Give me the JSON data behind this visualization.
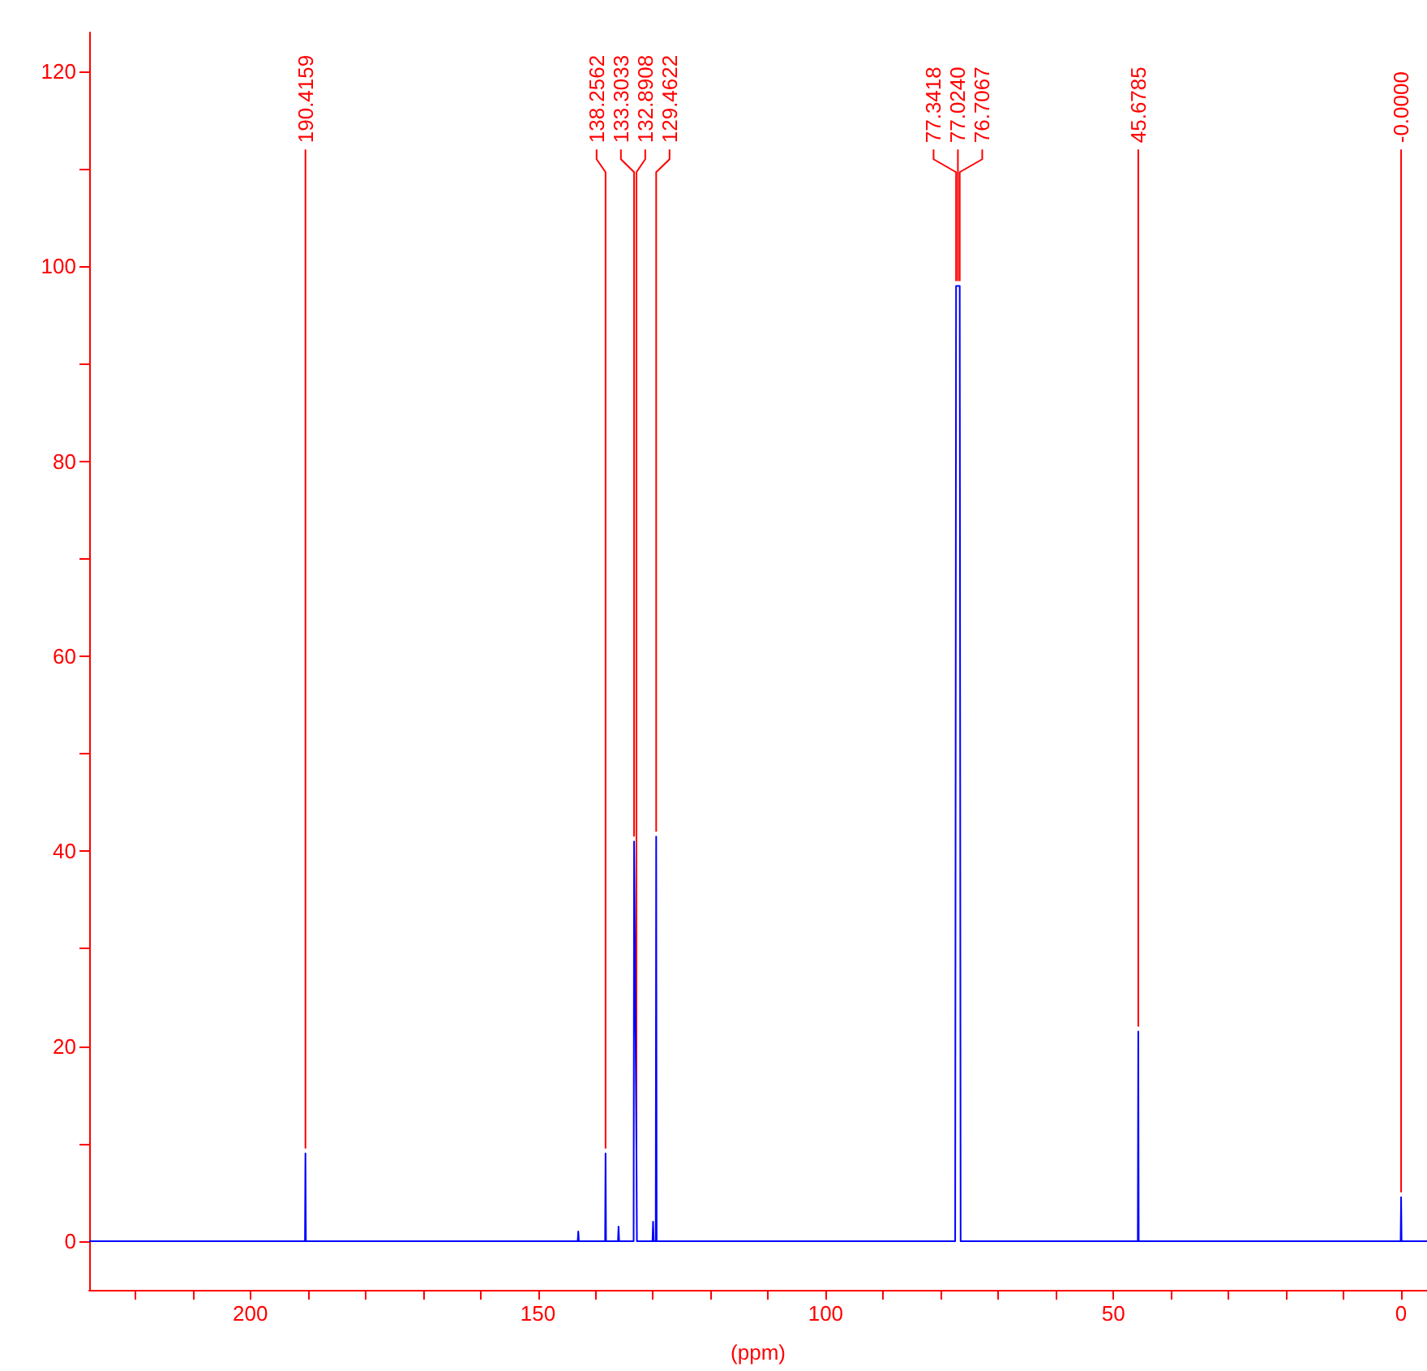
{
  "chart_data": {
    "type": "line",
    "xlabel": "(ppm)",
    "xlim": [
      228,
      -4.5
    ],
    "ylim": [
      -5,
      124
    ],
    "xticks": [
      {
        "value": 220,
        "label": null
      },
      {
        "value": 210,
        "label": null
      },
      200,
      {
        "value": 190,
        "label": null
      },
      {
        "value": 180,
        "label": null
      },
      {
        "value": 170,
        "label": null
      },
      {
        "value": 160,
        "label": null
      },
      150,
      {
        "value": 140,
        "label": null
      },
      {
        "value": 130,
        "label": null
      },
      {
        "value": 120,
        "label": null
      },
      {
        "value": 110,
        "label": null
      },
      100,
      {
        "value": 90,
        "label": null
      },
      {
        "value": 80,
        "label": null
      },
      {
        "value": 70,
        "label": null
      },
      {
        "value": 60,
        "label": null
      },
      50,
      {
        "value": 40,
        "label": null
      },
      {
        "value": 30,
        "label": null
      },
      {
        "value": 20,
        "label": null
      },
      {
        "value": 10,
        "label": null
      },
      0
    ],
    "yticks": [
      0,
      {
        "value": 10,
        "label": null
      },
      20,
      {
        "value": 30,
        "label": null
      },
      40,
      {
        "value": 50,
        "label": null
      },
      60,
      {
        "value": 70,
        "label": null
      },
      80,
      {
        "value": 90,
        "label": null
      },
      100,
      {
        "value": 110,
        "label": null
      },
      120
    ],
    "grid": false,
    "marker": "none",
    "line_style": "solid",
    "series": [
      {
        "color": "#0000ff",
        "x": [
          228,
          190.5,
          190.42,
          190.34,
          143.1,
          143.0,
          142.9,
          138.34,
          138.26,
          138.18,
          136.1,
          136.0,
          135.9,
          133.38,
          133.3,
          132.89,
          132.81,
          130.1,
          130.0,
          129.9,
          129.54,
          129.46,
          129.38,
          77.5,
          77.34,
          77.02,
          76.71,
          76.55,
          45.76,
          45.68,
          45.6,
          0.08,
          0.0,
          -0.08,
          -4.5
        ],
        "values": [
          0,
          0,
          9,
          0,
          0,
          1,
          0,
          0,
          9,
          0,
          0,
          1.5,
          0,
          0,
          41,
          9.5,
          0,
          0,
          2,
          0,
          0,
          41.5,
          0,
          0,
          98,
          98,
          98,
          0,
          0,
          21.5,
          0,
          0,
          4.5,
          0,
          0
        ]
      }
    ],
    "annotations": [
      {
        "text": "190.4159",
        "x": 190.4159,
        "y": 9
      },
      {
        "text": "138.2562",
        "x": 138.2562,
        "y": 9
      },
      {
        "text": "133.3033",
        "x": 133.3033,
        "y": 41
      },
      {
        "text": "132.8908",
        "x": 132.8908,
        "y": 9.5
      },
      {
        "text": "129.4622",
        "x": 129.4622,
        "y": 41.5
      },
      {
        "text": "77.3418",
        "x": 77.3418,
        "y": 98
      },
      {
        "text": "77.0240",
        "x": 77.024,
        "y": 98
      },
      {
        "text": "76.7067",
        "x": 76.7067,
        "y": 98
      },
      {
        "text": "45.6785",
        "x": 45.6785,
        "y": 21.5
      },
      {
        "text": "-0.0000",
        "x": 0,
        "y": 4.5
      }
    ]
  }
}
